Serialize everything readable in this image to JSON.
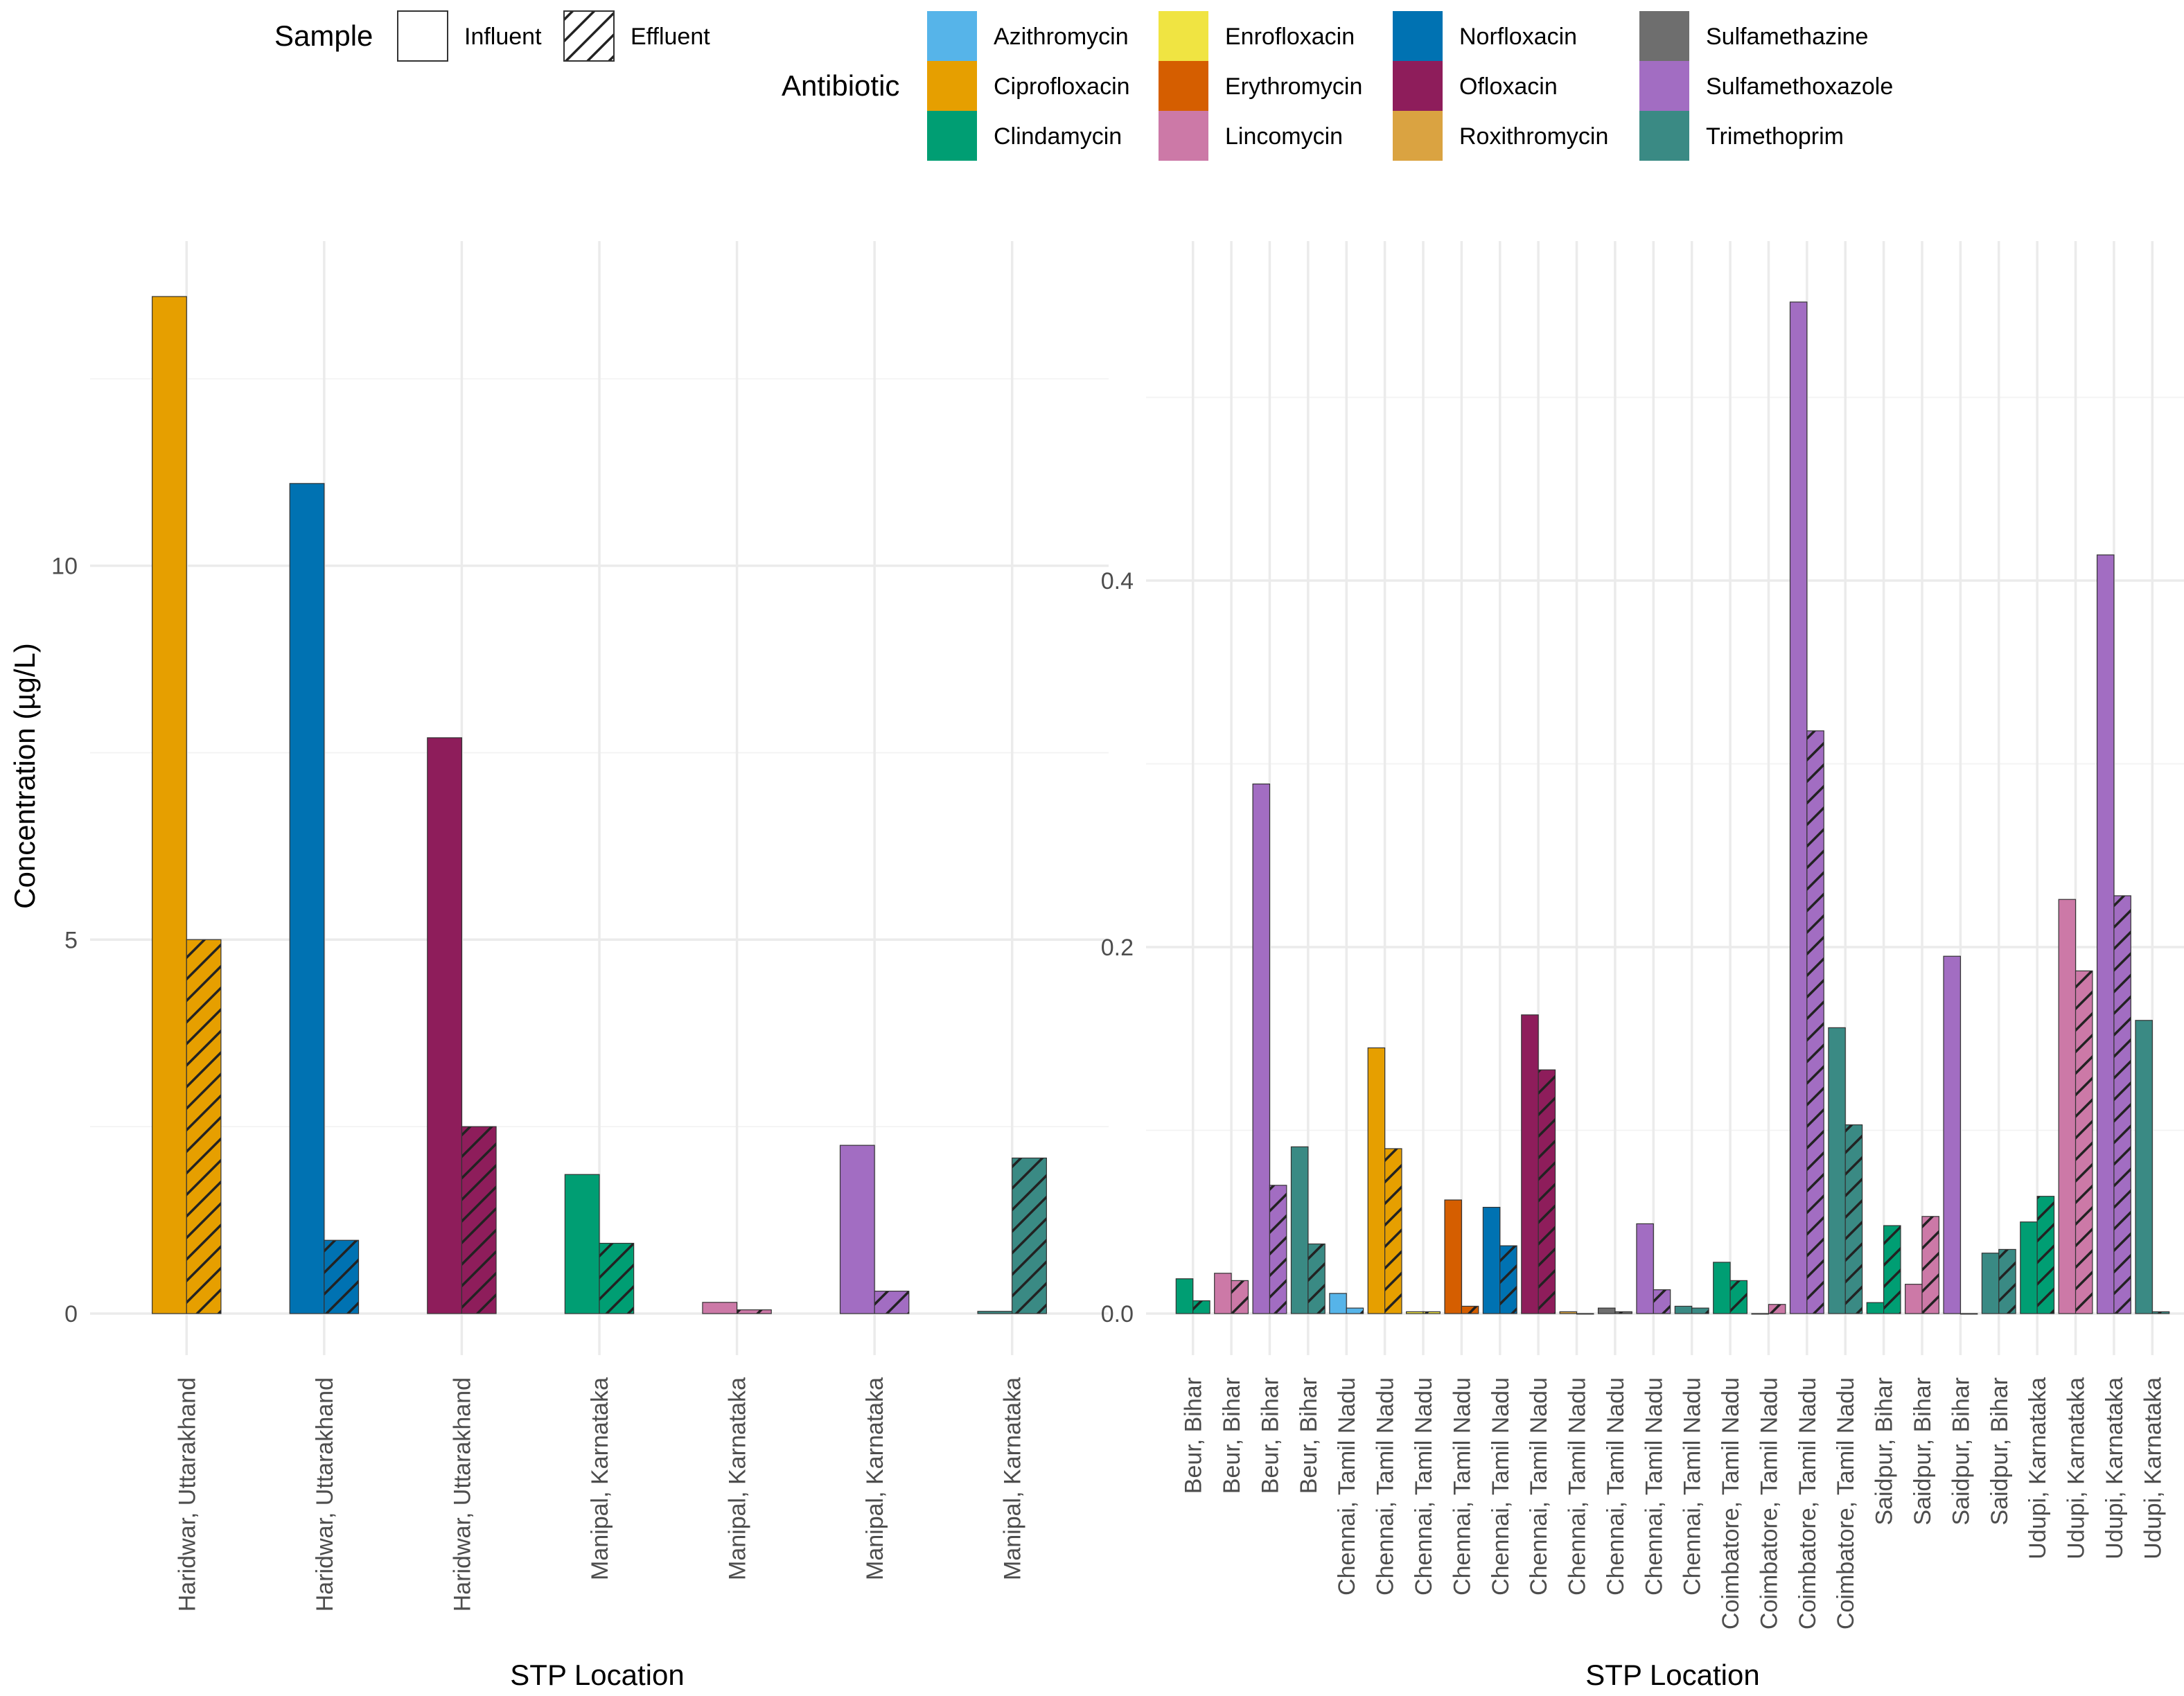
{
  "colors": {
    "Azithromycin": "#56B4E9",
    "Ciprofloxacin": "#E69F00",
    "Clindamycin": "#009E73",
    "Enrofloxacin": "#F0E442",
    "Erythromycin": "#D55E00",
    "Lincomycin": "#CC79A7",
    "Norfloxacin": "#0072B2",
    "Ofloxacin": "#8E1D5B",
    "Roxithromycin": "#DAA341",
    "Sulfamethazine": "#6E6E6E",
    "Sulfamethoxazole": "#A26DC2",
    "Trimethoprim": "#3A8A84"
  },
  "legend": {
    "sample_title": "Sample",
    "sample_entries": [
      "Influent",
      "Effluent"
    ],
    "antibiotic_title": "Antibiotic",
    "antibiotic_entries": [
      "Azithromycin",
      "Enrofloxacin",
      "Norfloxacin",
      "Sulfamethazine",
      "Ciprofloxacin",
      "Erythromycin",
      "Ofloxacin",
      "Sulfamethoxazole",
      "Clindamycin",
      "Lincomycin",
      "Roxithromycin",
      "Trimethoprim"
    ]
  },
  "chart_data": [
    {
      "type": "bar",
      "title": "",
      "xlabel": "STP Location",
      "ylabel": "Concentration (µg/L)",
      "ylim": [
        0,
        13.6
      ],
      "yticks": [
        0,
        5,
        10
      ],
      "yticklabels": [
        "0",
        "5",
        "10"
      ],
      "categories": [
        "Haridwar, Uttarakhand",
        "Haridwar, Uttarakhand",
        "Haridwar, Uttarakhand",
        "Manipal, Karnataka",
        "Manipal, Karnataka",
        "Manipal, Karnataka",
        "Manipal, Karnataka"
      ],
      "antibiotics": [
        "Ciprofloxacin",
        "Norfloxacin",
        "Ofloxacin",
        "Clindamycin",
        "Lincomycin",
        "Sulfamethoxazole",
        "Trimethoprim"
      ],
      "series": [
        {
          "name": "Influent",
          "values": [
            13.6,
            11.1,
            7.7,
            1.86,
            0.15,
            2.25,
            0.03
          ]
        },
        {
          "name": "Effluent",
          "values": [
            5.0,
            0.98,
            2.5,
            0.94,
            0.05,
            0.3,
            2.08
          ]
        }
      ]
    },
    {
      "type": "bar",
      "title": "",
      "xlabel": "STP Location",
      "ylabel": "",
      "ylim": [
        0,
        0.555
      ],
      "yticks": [
        0,
        0.2,
        0.4
      ],
      "yticklabels": [
        "0.0",
        "0.2",
        "0.4"
      ],
      "categories": [
        "Beur, Bihar",
        "Beur, Bihar",
        "Beur, Bihar",
        "Beur, Bihar",
        "Chennai, Tamil Nadu",
        "Chennai, Tamil Nadu",
        "Chennai, Tamil Nadu",
        "Chennai, Tamil Nadu",
        "Chennai, Tamil Nadu",
        "Chennai, Tamil Nadu",
        "Chennai, Tamil Nadu",
        "Chennai, Tamil Nadu",
        "Chennai, Tamil Nadu",
        "Chennai, Tamil Nadu",
        "Coimbatore, Tamil Nadu",
        "Coimbatore, Tamil Nadu",
        "Coimbatore, Tamil Nadu",
        "Coimbatore, Tamil Nadu",
        "Saidpur, Bihar",
        "Saidpur, Bihar",
        "Saidpur, Bihar",
        "Saidpur, Bihar",
        "Udupi, Karnataka",
        "Udupi, Karnataka",
        "Udupi, Karnataka",
        "Udupi, Karnataka"
      ],
      "antibiotics": [
        "Clindamycin",
        "Lincomycin",
        "Sulfamethoxazole",
        "Trimethoprim",
        "Azithromycin",
        "Ciprofloxacin",
        "Enrofloxacin",
        "Erythromycin",
        "Norfloxacin",
        "Ofloxacin",
        "Roxithromycin",
        "Sulfamethazine",
        "Sulfamethoxazole",
        "Trimethoprim",
        "Clindamycin",
        "Lincomycin",
        "Sulfamethoxazole",
        "Trimethoprim",
        "Clindamycin",
        "Lincomycin",
        "Sulfamethoxazole",
        "Trimethoprim",
        "Clindamycin",
        "Lincomycin",
        "Sulfamethoxazole",
        "Trimethoprim"
      ],
      "series": [
        {
          "name": "Influent",
          "values": [
            0.019,
            0.022,
            0.289,
            0.091,
            0.011,
            0.145,
            0.001,
            0.062,
            0.058,
            0.163,
            0.001,
            0.003,
            0.049,
            0.004,
            0.028,
            0.0,
            0.552,
            0.156,
            0.006,
            0.016,
            0.195,
            0.033,
            0.05,
            0.226,
            0.414,
            0.16
          ]
        },
        {
          "name": "Effluent",
          "values": [
            0.007,
            0.018,
            0.07,
            0.038,
            0.003,
            0.09,
            0.001,
            0.004,
            0.037,
            0.133,
            0.0,
            0.001,
            0.013,
            0.003,
            0.018,
            0.005,
            0.318,
            0.103,
            0.048,
            0.053,
            0.0,
            0.035,
            0.064,
            0.187,
            0.228,
            0.001
          ]
        }
      ]
    }
  ]
}
